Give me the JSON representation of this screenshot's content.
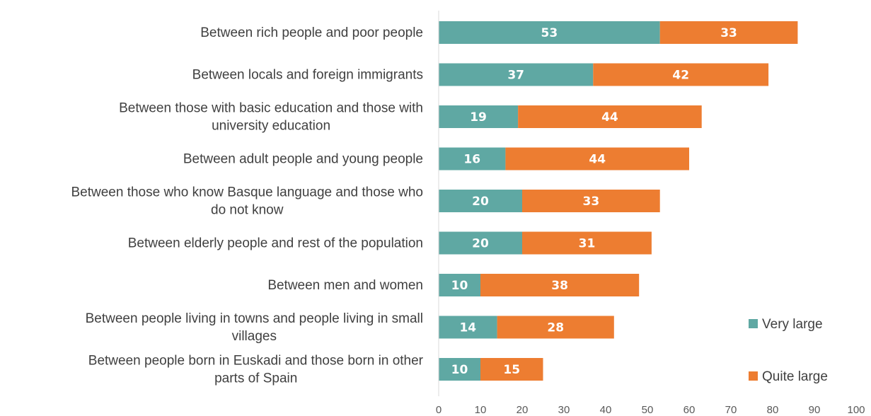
{
  "chart_data": {
    "type": "bar",
    "orientation": "horizontal",
    "stacked": true,
    "categories": [
      [
        "Between rich people and poor people"
      ],
      [
        "Between locals and foreign immigrants"
      ],
      [
        "Between those with basic education and those with",
        "university education"
      ],
      [
        "Between adult people and young people"
      ],
      [
        "Between  those who know Basque language and those who",
        "do not know"
      ],
      [
        "Between elderly people and rest of the population"
      ],
      [
        "Between men and women"
      ],
      [
        "Between people living in towns and people living in small",
        "villages"
      ],
      [
        "Between people born in Euskadi and those born in other",
        "parts of Spain"
      ]
    ],
    "series": [
      {
        "name": "Very large",
        "color": "#5fa8a3",
        "values": [
          53,
          37,
          19,
          16,
          20,
          20,
          10,
          14,
          10
        ]
      },
      {
        "name": "Quite large",
        "color": "#ed7d31",
        "values": [
          33,
          42,
          44,
          44,
          33,
          31,
          38,
          28,
          15
        ]
      }
    ],
    "xlim": [
      0,
      100
    ],
    "xticks": [
      0,
      10,
      20,
      30,
      40,
      50,
      60,
      70,
      80,
      90,
      100
    ],
    "grid": false,
    "legend_position": "bottom-right",
    "title": "",
    "xlabel": "",
    "ylabel": ""
  }
}
